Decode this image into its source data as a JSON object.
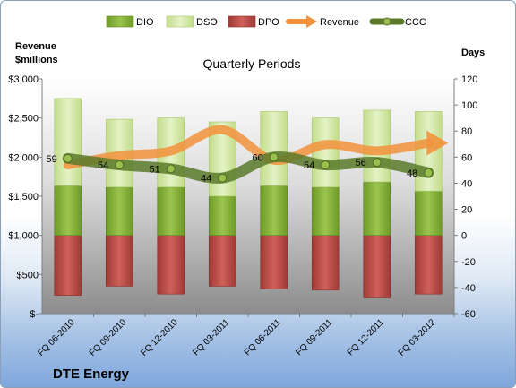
{
  "chart_data": {
    "type": "bar",
    "title": "Quarterly Periods",
    "company": "DTE Energy",
    "ylabel_left": [
      "Revenue",
      "$millions"
    ],
    "ylabel_right": "Days",
    "categories": [
      "FQ 06-2010",
      "FQ 09-2010",
      "FQ 12-2010",
      "FQ 03-2011",
      "FQ 06-2011",
      "FQ 09-2011",
      "FQ 12-2011",
      "FQ 03-2012"
    ],
    "ylim_left": [
      0,
      3000
    ],
    "ylim_right": [
      -60,
      120
    ],
    "left_ticks": [
      "$-",
      "$500",
      "$1,000",
      "$1,500",
      "$2,000",
      "$2,500",
      "$3,000"
    ],
    "right_ticks": [
      "-60",
      "-40",
      "-20",
      "0",
      "20",
      "40",
      "60",
      "80",
      "100",
      "120"
    ],
    "series": [
      {
        "name": "DIO",
        "axis": "right",
        "color": "#7fa832",
        "values": [
          38,
          37,
          37,
          30,
          38,
          37,
          41,
          34
        ]
      },
      {
        "name": "DSO",
        "axis": "right",
        "color": "#c9e29a",
        "values": [
          67,
          52,
          53,
          57,
          57,
          53,
          55,
          61
        ]
      },
      {
        "name": "DPO",
        "axis": "right",
        "color": "#c0504d",
        "values": [
          -46,
          -39,
          -45,
          -39,
          -41,
          -42,
          -48,
          -45
        ]
      },
      {
        "name": "Revenue",
        "axis": "left",
        "color": "#f2923c",
        "values": [
          1900,
          2020,
          2080,
          2350,
          1960,
          2160,
          2080,
          2180
        ]
      },
      {
        "name": "CCC",
        "axis": "right",
        "color": "#6b8e3a",
        "values": [
          59,
          54,
          51,
          44,
          60,
          54,
          56,
          48
        ]
      }
    ],
    "ccc_labels": [
      "59",
      "54",
      "51",
      "44",
      "60",
      "54",
      "56",
      "48"
    ],
    "legend": [
      "DIO",
      "DSO",
      "DPO",
      "Revenue",
      "CCC"
    ],
    "legend_position": "top",
    "grid": false
  }
}
